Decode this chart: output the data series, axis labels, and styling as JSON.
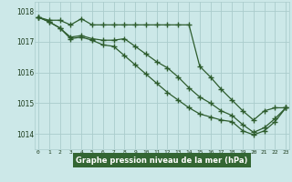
{
  "title": "Graphe pression niveau de la mer (hPa)",
  "hours": [
    0,
    1,
    2,
    3,
    4,
    5,
    6,
    7,
    8,
    9,
    10,
    11,
    12,
    13,
    14,
    15,
    16,
    17,
    18,
    19,
    20,
    21,
    22,
    23
  ],
  "line_top": [
    1017.8,
    1017.7,
    1017.7,
    1017.55,
    1017.75,
    1017.55,
    1017.55,
    1017.55,
    1017.55,
    1017.55,
    1017.55,
    1017.55,
    1017.55,
    1017.55,
    1017.55,
    1016.2,
    1015.85,
    1015.45,
    1015.1,
    1014.75,
    1014.45,
    1014.75,
    1014.85,
    1014.85
  ],
  "line_mid": [
    1017.8,
    1017.65,
    1017.45,
    1017.15,
    1017.2,
    1017.1,
    1017.05,
    1017.05,
    1017.1,
    1016.85,
    1016.6,
    1016.35,
    1016.15,
    1015.85,
    1015.5,
    1015.2,
    1015.0,
    1014.75,
    1014.6,
    1014.3,
    1014.05,
    1014.2,
    1014.5,
    1014.85
  ],
  "line_bot": [
    1017.8,
    1017.65,
    1017.45,
    1017.1,
    1017.15,
    1017.05,
    1016.9,
    1016.85,
    1016.55,
    1016.25,
    1015.95,
    1015.65,
    1015.35,
    1015.1,
    1014.85,
    1014.65,
    1014.55,
    1014.45,
    1014.4,
    1014.1,
    1013.97,
    1014.1,
    1014.4,
    1014.85
  ],
  "ylim": [
    1013.5,
    1018.3
  ],
  "yticks": [
    1014,
    1015,
    1016,
    1017,
    1018
  ],
  "bg_color": "#cce8e8",
  "grid_color": "#aacccc",
  "line_color": "#2d5c2d",
  "title_bg": "#336633",
  "title_fg": "#ffffff"
}
